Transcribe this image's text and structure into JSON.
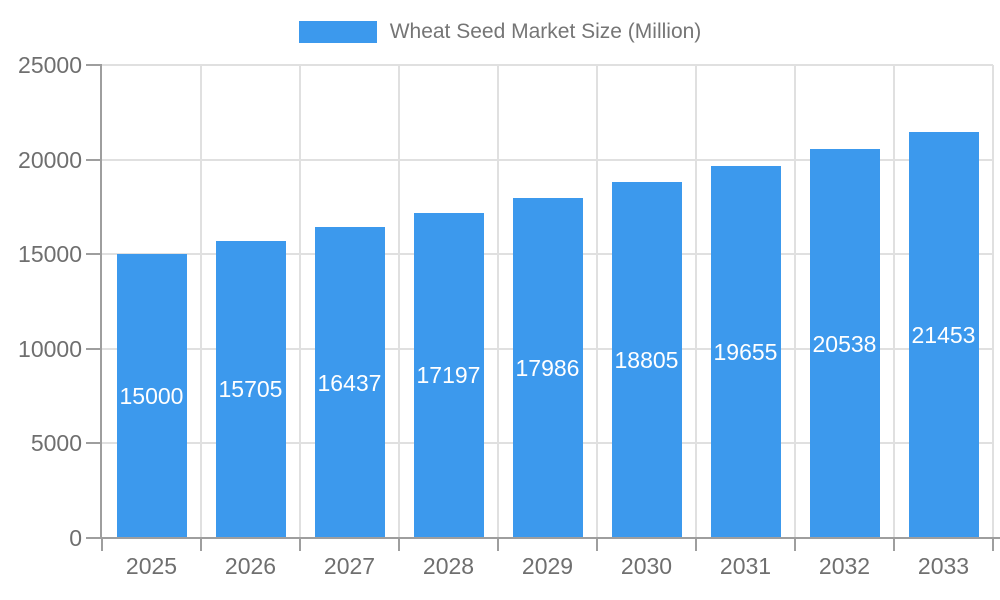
{
  "chart_data": {
    "type": "bar",
    "title": "Wheat Seed Market Size (Million)",
    "categories": [
      "2025",
      "2026",
      "2027",
      "2028",
      "2029",
      "2030",
      "2031",
      "2032",
      "2033"
    ],
    "values": [
      15000,
      15705,
      16437,
      17197,
      17986,
      18805,
      19655,
      20538,
      21453
    ],
    "xlabel": "",
    "ylabel": "",
    "ylim": [
      0,
      25000
    ],
    "yticks": [
      0,
      5000,
      10000,
      15000,
      20000,
      25000
    ],
    "grid": true,
    "legend_position": "top-center",
    "legend": {
      "label": "Wheat Seed Market Size (Million)",
      "swatch_color": "#3c99ed"
    },
    "colors": {
      "bar": "#3c99ed",
      "value_label": "#ffffff",
      "axis": "#9e9e9e",
      "grid": "#e0e0e0",
      "tick_label": "#6f6f6f",
      "legend_text": "#757575",
      "background": "#ffffff"
    }
  }
}
